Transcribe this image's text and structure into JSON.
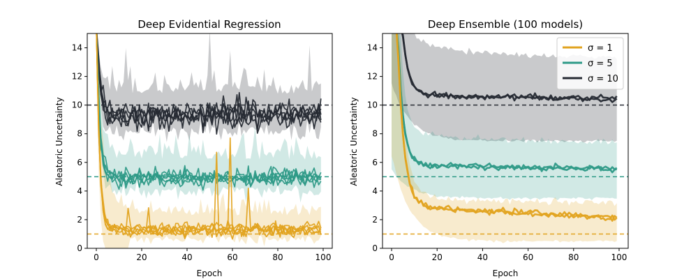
{
  "colors": {
    "sigma1": "#e1a31f",
    "sigma5": "#2e9a87",
    "sigma10": "#262a33"
  },
  "chart_data": [
    {
      "type": "line",
      "title": "Deep Evidential Regression",
      "xlabel": "Epoch",
      "ylabel": "Aleatoric Uncertainty",
      "xlim": [
        -4,
        104
      ],
      "ylim": [
        0,
        15
      ],
      "xticks": [
        0,
        20,
        40,
        60,
        80,
        100
      ],
      "xtick_labels": [
        "0",
        "20",
        "40",
        "60",
        "80",
        "100"
      ],
      "yticks": [
        0,
        2,
        4,
        6,
        8,
        10,
        12,
        14
      ],
      "ytick_labels": [
        "0",
        "2",
        "4",
        "6",
        "8",
        "10",
        "12",
        "14"
      ],
      "reference_lines": [
        {
          "y": 1,
          "series": "sigma1"
        },
        {
          "y": 5,
          "series": "sigma5"
        },
        {
          "y": 10,
          "series": "sigma10"
        }
      ],
      "series": [
        {
          "name": "σ=1",
          "key": "sigma1",
          "runs": 5,
          "final_value": 1.3,
          "band": [
            0.6,
            2.3
          ],
          "spikes": [
            {
              "x": 53,
              "y": 6.7
            },
            {
              "x": 59,
              "y": 7.7
            },
            {
              "x": 67,
              "y": 4.2
            }
          ]
        },
        {
          "name": "σ=5",
          "key": "sigma5",
          "runs": 5,
          "final_value": 4.9,
          "band": [
            4.0,
            6.2
          ]
        },
        {
          "name": "σ=10",
          "key": "sigma10",
          "runs": 5,
          "final_value": 9.3,
          "band": [
            8.2,
            10.8
          ]
        }
      ]
    },
    {
      "type": "line",
      "title": "Deep Ensemble (100 models)",
      "xlabel": "Epoch",
      "ylabel": "Aleatoric Uncertainty",
      "xlim": [
        -4,
        104
      ],
      "ylim": [
        0,
        15
      ],
      "xticks": [
        0,
        20,
        40,
        60,
        80,
        100
      ],
      "xtick_labels": [
        "0",
        "20",
        "40",
        "60",
        "80",
        "100"
      ],
      "yticks": [
        0,
        2,
        4,
        6,
        8,
        10,
        12,
        14
      ],
      "ytick_labels": [
        "0",
        "2",
        "4",
        "6",
        "8",
        "10",
        "12",
        "14"
      ],
      "legend_position": "top-right",
      "reference_lines": [
        {
          "y": 1,
          "series": "sigma1"
        },
        {
          "y": 5,
          "series": "sigma5"
        },
        {
          "y": 10,
          "series": "sigma10"
        }
      ],
      "series": [
        {
          "name": "σ=1",
          "legend_label": "σ = 1",
          "key": "sigma1",
          "runs": 2,
          "final_value": 2.1,
          "band_final": [
            0.5,
            3.2
          ]
        },
        {
          "name": "σ=5",
          "legend_label": "σ = 5",
          "key": "sigma5",
          "runs": 2,
          "final_value": 5.5,
          "band_final": [
            3.5,
            7.4
          ]
        },
        {
          "name": "σ=10",
          "legend_label": "σ = 10",
          "key": "sigma10",
          "runs": 2,
          "final_value": 10.4,
          "band_final": [
            7.5,
            13.3
          ]
        }
      ]
    }
  ]
}
